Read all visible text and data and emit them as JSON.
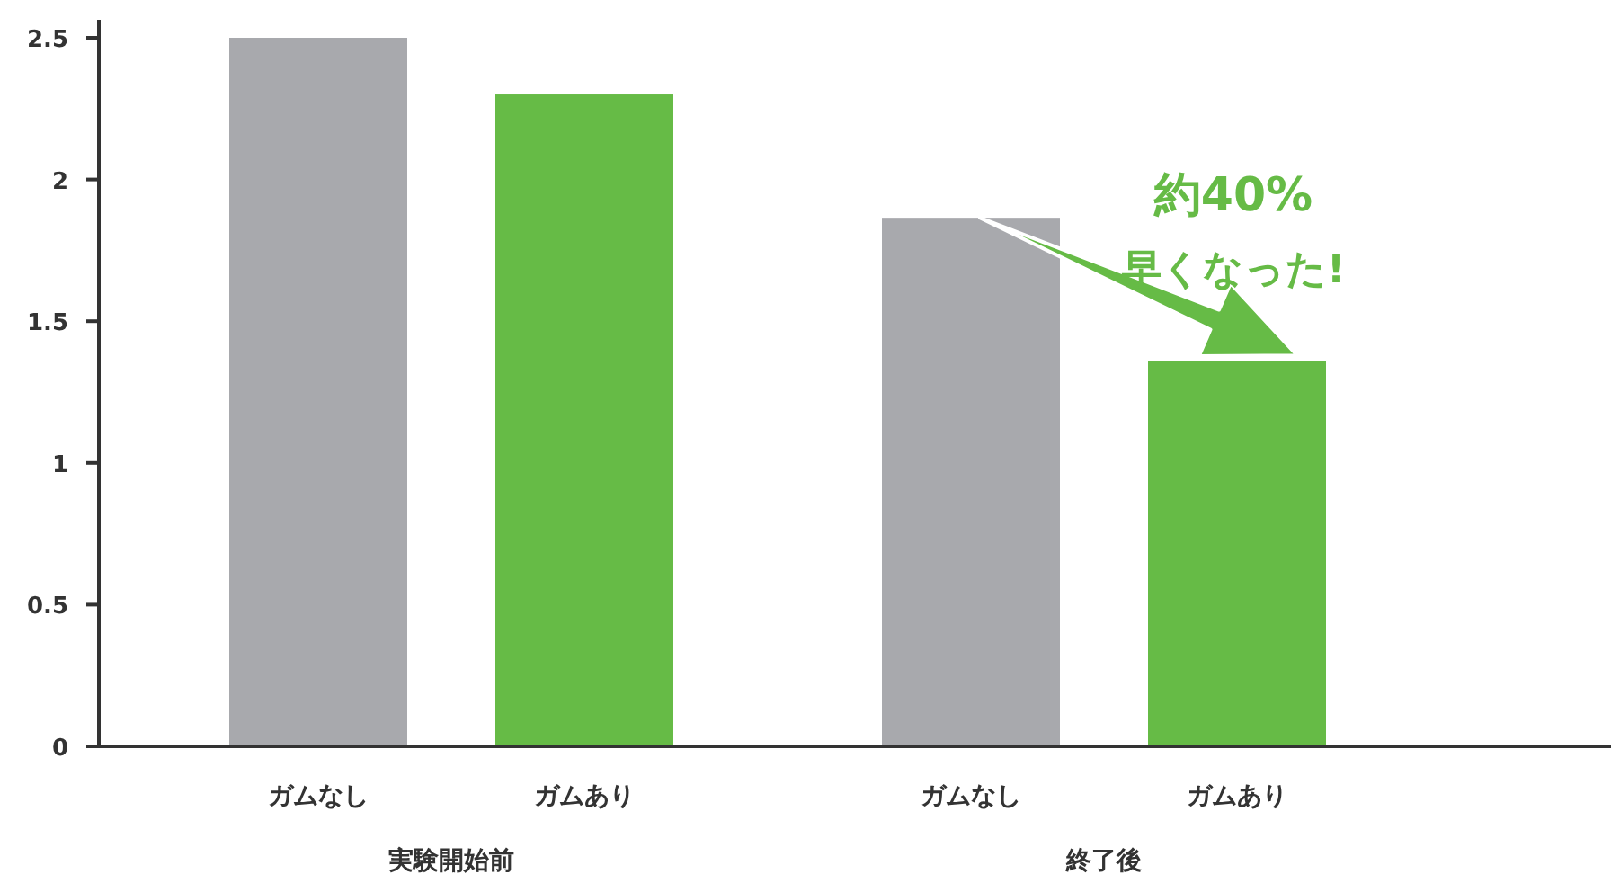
{
  "chart_data": {
    "type": "bar",
    "categories": [
      "実験開始前",
      "終了後"
    ],
    "series": [
      {
        "name": "ガムなし",
        "color": "#a8a9ad",
        "values": [
          2.5,
          1.865
        ]
      },
      {
        "name": "ガムあり",
        "color": "#66bb46",
        "values": [
          2.3,
          1.36
        ]
      }
    ],
    "ylim": [
      0,
      2.5
    ],
    "yticks": [
      0,
      0.5,
      1,
      1.5,
      2,
      2.5
    ],
    "grid": false,
    "annotations": [
      "約40%",
      "早くなった!"
    ]
  }
}
